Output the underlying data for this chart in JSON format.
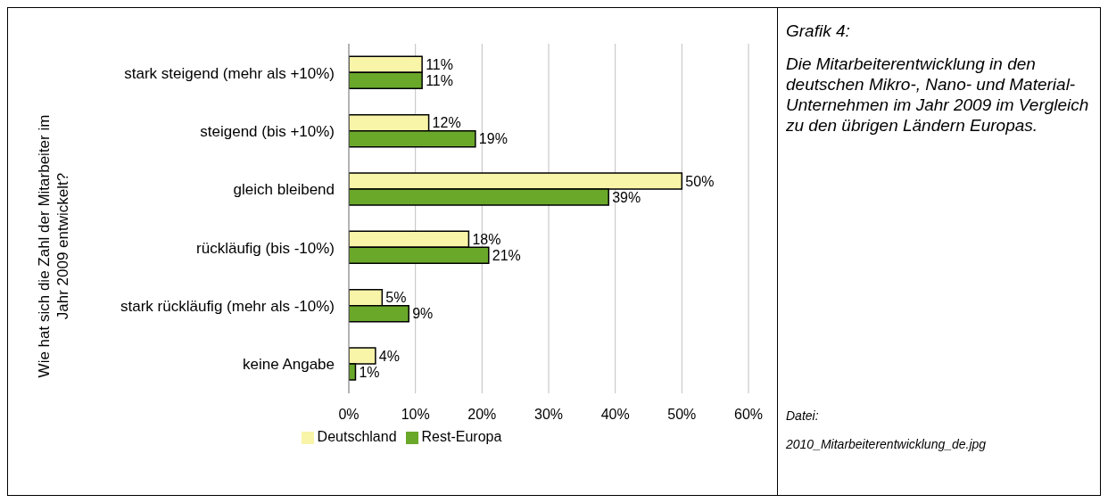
{
  "chart_data": {
    "type": "bar",
    "orientation": "horizontal",
    "title": "Grafik 4:",
    "subtitle": "Die Mitarbeiterentwicklung in den deutschen Mikro-, Nano- und Material-Unternehmen im Jahr 2009 im Vergleich zu den übrigen Ländern Europas.",
    "ylabel": "Wie hat sich die Zahl der Mitarbeiter im Jahr 2009 entwickelt?",
    "annotations": [
      "Datei:",
      "2010_Mitarbeiterentwicklung_de.jpg"
    ],
    "categories": [
      "stark steigend (mehr als +10%)",
      "steigend (bis +10%)",
      "gleich bleibend",
      "rückläufig (bis -10%)",
      "stark rückläufig (mehr als -10%)",
      "keine Angabe"
    ],
    "series": [
      {
        "name": "Deutschland",
        "color": "#f8f4a8",
        "values": [
          11,
          12,
          50,
          18,
          5,
          4
        ],
        "value_labels": [
          "11%",
          "12%",
          "50%",
          "18%",
          "5%",
          "4%"
        ]
      },
      {
        "name": "Rest-Europa",
        "color": "#6aa82a",
        "values": [
          11,
          19,
          39,
          21,
          9,
          1
        ],
        "value_labels": [
          "11%",
          "19%",
          "39%",
          "21%",
          "9%",
          "1%"
        ]
      }
    ],
    "xlim": [
      0,
      60
    ],
    "xticks": [
      {
        "value": 0,
        "label": "0%"
      },
      {
        "value": 10,
        "label": "10%"
      },
      {
        "value": 20,
        "label": "20%"
      },
      {
        "value": 30,
        "label": "30%"
      },
      {
        "value": 40,
        "label": "40%"
      },
      {
        "value": 50,
        "label": "50%"
      },
      {
        "value": 60,
        "label": "60%"
      }
    ],
    "grid": "x",
    "legend": "bottom"
  }
}
